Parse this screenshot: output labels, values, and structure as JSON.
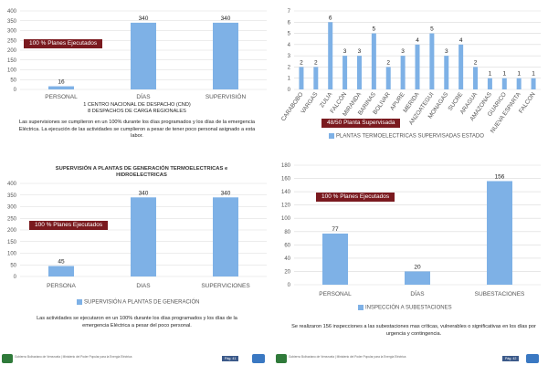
{
  "colors": {
    "bar": "#7eb1e6",
    "banner": "#7a1a1f"
  },
  "chart_data": [
    {
      "type": "bar",
      "categories": [
        "PERSONAL",
        "DÍAS",
        "SUPERVISIÓN"
      ],
      "values": [
        16,
        340,
        340
      ],
      "ylim": [
        0,
        400
      ],
      "yticks": [
        0,
        50,
        100,
        150,
        200,
        250,
        300,
        350,
        400
      ],
      "title": "",
      "banner": "100 % Planes Ejecutados"
    },
    {
      "type": "bar",
      "categories": [
        "CARABOBO",
        "VARGAS",
        "ZULIA",
        "FALCÓN",
        "MIRANDA",
        "BARINAS",
        "BOLIVAR",
        "APURE",
        "MERIDA",
        "ANZOATEGUI",
        "MONAGAS",
        "SUCRE",
        "ARAGUA",
        "AMAZONAS",
        "GUARICO",
        "NUEVA ESPARTA",
        "FALCON"
      ],
      "values": [
        2,
        2,
        6,
        3,
        3,
        5,
        2,
        3,
        4,
        5,
        3,
        4,
        2,
        1,
        1,
        1,
        1
      ],
      "ylim": [
        0,
        7
      ],
      "yticks": [
        0,
        1,
        2,
        3,
        4,
        5,
        6,
        7
      ],
      "banner": "48/50 Planta Supervisada",
      "legend": "PLANTAS TERMOELECTRICAS SUPERVISADAS ESTADO"
    },
    {
      "type": "bar",
      "title": "SUPERVISIÓN A PLANTAS DE GENERACIÓN TERMOELECTRICAS e HIDROELECTRICAS",
      "categories": [
        "PERSONA",
        "DIAS",
        "SUPERVICIONES"
      ],
      "values": [
        45,
        340,
        340
      ],
      "ylim": [
        0,
        400
      ],
      "yticks": [
        0,
        50,
        100,
        150,
        200,
        250,
        300,
        350,
        400
      ],
      "banner": "100 % Planes Ejecutados",
      "legend": "SUPERVISIÓN A PLANTAS DE GENERACIÓN"
    },
    {
      "type": "bar",
      "categories": [
        "PERSONAL",
        "DÍAS",
        "SUBESTACIONES"
      ],
      "values": [
        77,
        20,
        156
      ],
      "ylim": [
        0,
        180
      ],
      "yticks": [
        0,
        20,
        40,
        60,
        80,
        100,
        120,
        140,
        160,
        180
      ],
      "banner": "100 % Planes Ejecutados",
      "legend": "INSPECCIÓN A SUBESTACIONES"
    }
  ],
  "texts": {
    "tl_note1": "1 CENTRO NACIONAL DE DESPACHO (CND)",
    "tl_note2": "8 DESPACHOS DE CARGA REGIONALES",
    "tl_caption": "Las supervisiones se cumplieron en un 100% durante los días programados y los días de la emergencia Eléctrica. La ejecución de las actividades se cumplieron a pesar de tener poco personal asignado a esta labor.",
    "bl_caption": "Las actividades se ejecutaron en un 100% durante los días programados y los días de la emergencia Eléctrica a pesar del poco personal.",
    "br_caption": "Se realizaron 156 inspecciones a las subestaciones mas críticas, vulnerables o significativas en los días por urgencia y contingencia."
  },
  "footer": {
    "left_text": "Gobierno Bolivariano de Venezuela | Ministerio del Poder Popular para la Energía Eléctrica",
    "right_text": "Gobierno Bolivariano de Venezuela | Ministerio del Poder Popular para la Energía Eléctrica",
    "page_left": "Pág. 41",
    "page_right": "Pág. 42"
  }
}
